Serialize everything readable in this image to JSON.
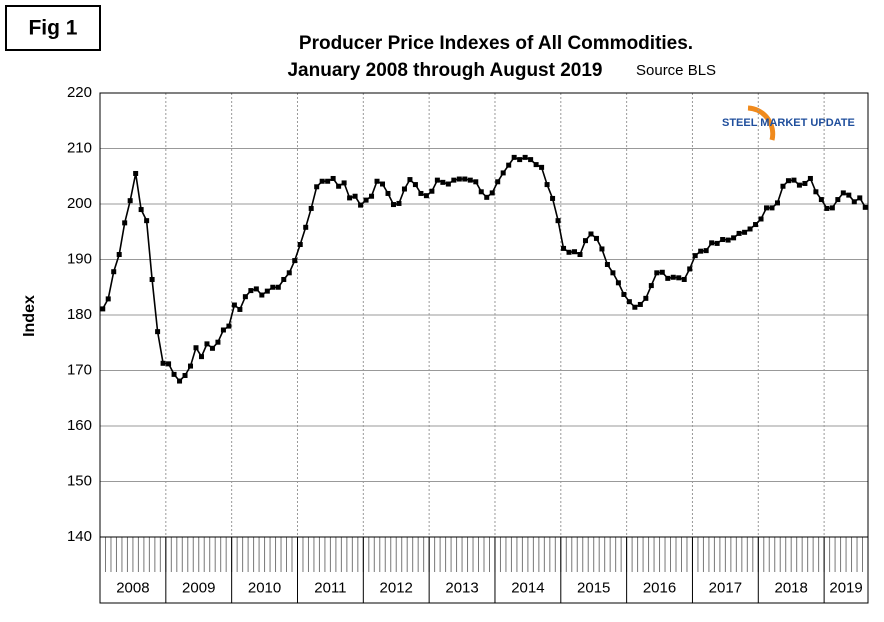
{
  "fig_label": "Fig 1",
  "logo": "STEEL MARKET UPDATE",
  "chart_data": {
    "type": "line",
    "title": "Producer Price Indexes of All Commodities.",
    "subtitle": "January 2008 through August 2019",
    "source": "Source BLS",
    "y_label": "Index",
    "years": [
      "2008",
      "2009",
      "2010",
      "2011",
      "2012",
      "2013",
      "2014",
      "2015",
      "2016",
      "2017",
      "2018",
      "2019"
    ],
    "color": "#000000",
    "values": [
      181.1,
      182.9,
      187.8,
      190.9,
      196.6,
      200.6,
      205.5,
      199.0,
      197.0,
      186.4,
      177.0,
      171.3,
      171.2,
      169.3,
      168.1,
      169.1,
      170.8,
      174.1,
      172.5,
      174.8,
      174.0,
      175.1,
      177.3,
      178.0,
      181.8,
      181.0,
      183.3,
      184.4,
      184.7,
      183.6,
      184.3,
      185.0,
      185.0,
      186.4,
      187.6,
      189.8,
      192.7,
      195.8,
      199.2,
      203.1,
      204.1,
      204.1,
      204.6,
      203.2,
      203.8,
      201.1,
      201.4,
      199.8,
      200.7,
      201.4,
      204.1,
      203.6,
      201.9,
      199.9,
      200.1,
      202.7,
      204.4,
      203.5,
      201.9,
      201.5,
      202.3,
      204.3,
      203.9,
      203.6,
      204.3,
      204.5,
      204.5,
      204.3,
      204.0,
      202.2,
      201.2,
      202.0,
      204.0,
      205.6,
      207.0,
      208.4,
      208.0,
      208.4,
      208.0,
      207.1,
      206.6,
      203.5,
      201.0,
      197.0,
      192.0,
      191.3,
      191.4,
      190.9,
      193.4,
      194.6,
      193.8,
      191.9,
      189.1,
      187.6,
      185.8,
      183.7,
      182.4,
      181.4,
      181.9,
      183.0,
      185.3,
      187.6,
      187.7,
      186.6,
      186.8,
      186.7,
      186.4,
      188.3,
      190.7,
      191.5,
      191.6,
      193.0,
      192.9,
      193.6,
      193.5,
      193.9,
      194.7,
      194.9,
      195.5,
      196.3,
      197.3,
      199.3,
      199.3,
      200.2,
      203.2,
      204.2,
      204.3,
      203.4,
      203.7,
      204.6,
      202.2,
      200.8,
      199.2,
      199.3,
      200.8,
      202.0,
      201.6,
      200.4,
      201.1,
      199.4
    ],
    "ylim": [
      140,
      220
    ],
    "yticks": [
      140,
      150,
      160,
      170,
      180,
      190,
      200,
      210,
      220
    ],
    "grid": true
  }
}
